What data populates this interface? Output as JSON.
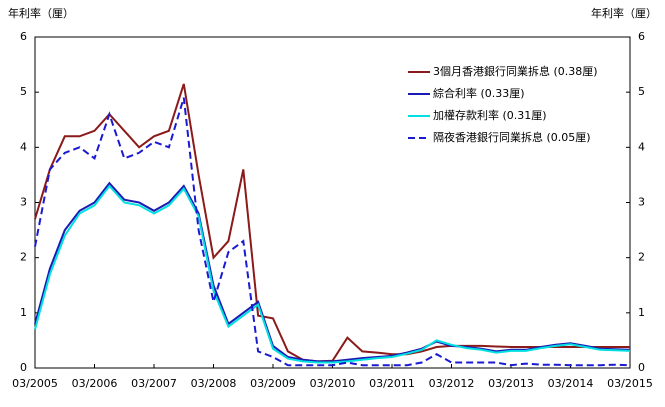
{
  "chart_data": {
    "type": "line",
    "y_label": "年利率（厘）",
    "y2_label": "年利率（厘）",
    "x": [
      "03/2005",
      "06/2005",
      "09/2005",
      "12/2005",
      "03/2006",
      "06/2006",
      "09/2006",
      "12/2006",
      "03/2007",
      "06/2007",
      "09/2007",
      "12/2007",
      "03/2008",
      "06/2008",
      "09/2008",
      "12/2008",
      "03/2009",
      "06/2009",
      "09/2009",
      "12/2009",
      "03/2010",
      "06/2010",
      "09/2010",
      "12/2010",
      "03/2011",
      "06/2011",
      "09/2011",
      "12/2011",
      "03/2012",
      "06/2012",
      "09/2012",
      "12/2012",
      "03/2013",
      "06/2013",
      "09/2013",
      "12/2013",
      "03/2014",
      "06/2014",
      "09/2014",
      "12/2014",
      "03/2015"
    ],
    "xticks": [
      "03/2005",
      "03/2006",
      "03/2007",
      "03/2008",
      "03/2009",
      "03/2010",
      "03/2011",
      "03/2012",
      "03/2013",
      "03/2014",
      "03/2015"
    ],
    "ylim": [
      0,
      6
    ],
    "yticks": [
      0,
      1,
      2,
      3,
      4,
      5,
      6
    ],
    "y2lim": [
      0,
      6
    ],
    "y2ticks": [
      0,
      1,
      2,
      3,
      4,
      5,
      6
    ],
    "series": [
      {
        "name": "3個月香港銀行同業拆息 (0.38厘)",
        "color": "#8b1a1a",
        "dash": false,
        "values": [
          2.7,
          3.6,
          4.2,
          4.2,
          4.3,
          4.6,
          4.3,
          4.0,
          4.2,
          4.3,
          5.15,
          3.5,
          2.0,
          2.3,
          3.6,
          0.95,
          0.9,
          0.3,
          0.15,
          0.12,
          0.13,
          0.55,
          0.3,
          0.28,
          0.25,
          0.25,
          0.3,
          0.38,
          0.4,
          0.4,
          0.4,
          0.39,
          0.38,
          0.38,
          0.38,
          0.38,
          0.38,
          0.38,
          0.38,
          0.38,
          0.38
        ]
      },
      {
        "name": "綜合利率 (0.33厘)",
        "color": "#1a1ab4",
        "dash": false,
        "values": [
          0.8,
          1.8,
          2.5,
          2.85,
          3.0,
          3.35,
          3.05,
          3.0,
          2.85,
          3.0,
          3.3,
          2.8,
          1.5,
          0.8,
          1.0,
          1.2,
          0.4,
          0.2,
          0.15,
          0.12,
          0.12,
          0.15,
          0.18,
          0.2,
          0.22,
          0.28,
          0.35,
          0.48,
          0.4,
          0.38,
          0.35,
          0.3,
          0.33,
          0.33,
          0.38,
          0.42,
          0.45,
          0.4,
          0.35,
          0.34,
          0.33
        ]
      },
      {
        "name": "加權存款利率 (0.31厘)",
        "color": "#00e0e0",
        "dash": false,
        "values": [
          0.7,
          1.7,
          2.4,
          2.8,
          2.95,
          3.3,
          3.0,
          2.95,
          2.8,
          2.95,
          3.25,
          2.75,
          1.4,
          0.75,
          0.95,
          1.15,
          0.35,
          0.17,
          0.12,
          0.1,
          0.1,
          0.12,
          0.15,
          0.18,
          0.2,
          0.26,
          0.33,
          0.5,
          0.42,
          0.36,
          0.33,
          0.28,
          0.31,
          0.31,
          0.36,
          0.4,
          0.43,
          0.38,
          0.33,
          0.32,
          0.31
        ]
      },
      {
        "name": "隔夜香港銀行同業拆息 (0.05厘)",
        "color": "#1a1ad2",
        "dash": true,
        "values": [
          2.2,
          3.6,
          3.9,
          4.0,
          3.8,
          4.6,
          3.8,
          3.9,
          4.1,
          4.0,
          4.9,
          2.5,
          1.2,
          2.1,
          2.3,
          0.3,
          0.2,
          0.05,
          0.05,
          0.05,
          0.05,
          0.1,
          0.05,
          0.05,
          0.05,
          0.05,
          0.1,
          0.25,
          0.1,
          0.1,
          0.1,
          0.1,
          0.05,
          0.08,
          0.06,
          0.06,
          0.05,
          0.05,
          0.05,
          0.06,
          0.05
        ]
      }
    ]
  }
}
